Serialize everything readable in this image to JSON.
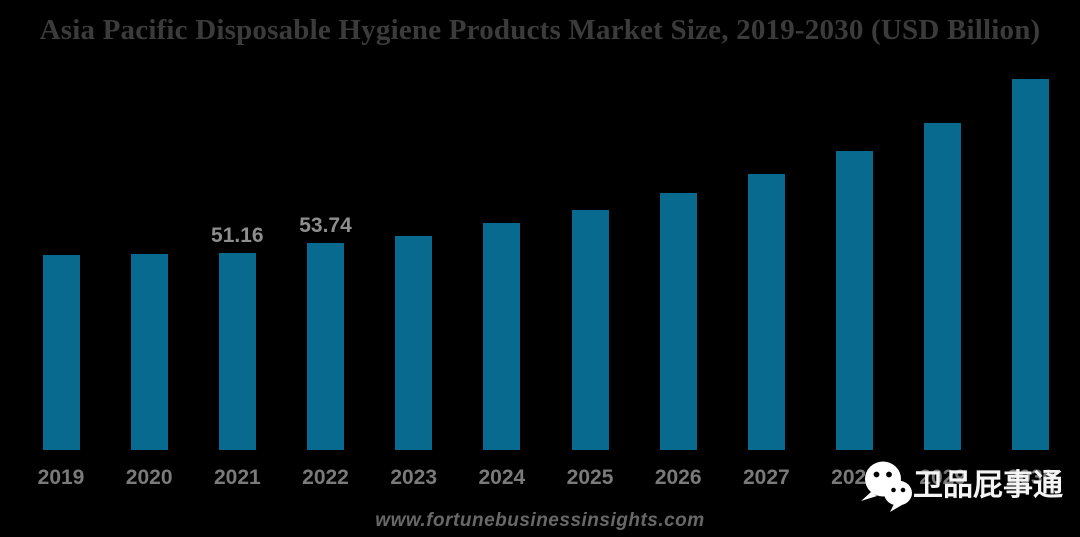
{
  "title": "Asia Pacific Disposable Hygiene Products Market Size, 2019-2030 (USD Billion)",
  "footer": {
    "url": "www.fortunebusinessinsights.com"
  },
  "watermark": {
    "icon": "wechat-icon",
    "text": "卫品屁事通"
  },
  "colors": {
    "background": "#000000",
    "bar": "#086a8f",
    "title_text": "#3b3b3b",
    "axis_label": "#7a7a7a",
    "data_label": "#8e8e8e",
    "footer_text": "#686868",
    "watermark_text": "#f4f4f4"
  },
  "chart_data": {
    "type": "bar",
    "title": "Asia Pacific Disposable Hygiene Products Market Size, 2019-2030 (USD Billion)",
    "categories": [
      "2019",
      "2020",
      "2021",
      "2022",
      "2023",
      "2024",
      "2025",
      "2026",
      "2027",
      "2028",
      "2029",
      "2030"
    ],
    "values": [
      50.8,
      51.0,
      51.16,
      53.74,
      55.7,
      59.0,
      62.4,
      66.8,
      71.7,
      77.7,
      85.0,
      96.4
    ],
    "data_labels": [
      "",
      "",
      "51.16",
      "53.74",
      "",
      "",
      "",
      "",
      "",
      "",
      "",
      ""
    ],
    "xlabel": "",
    "ylabel": "",
    "ylim": [
      0,
      101.4
    ],
    "grid": false,
    "legend": false,
    "bar_color": "#086a8f",
    "source": "www.fortunebusinessinsights.com"
  }
}
